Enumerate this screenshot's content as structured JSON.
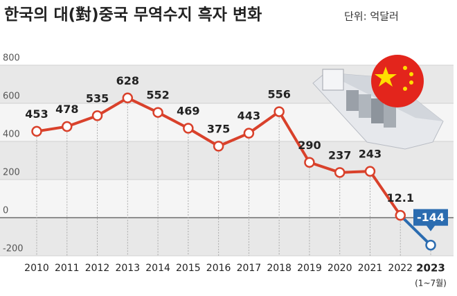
{
  "chart_data": {
    "type": "line",
    "title": "한국의 대(對)중국 무역수지 흑자 변화",
    "subtitle": "단위: 억달러",
    "categories": [
      "2010",
      "2011",
      "2012",
      "2013",
      "2014",
      "2015",
      "2016",
      "2017",
      "2018",
      "2019",
      "2020",
      "2021",
      "2022",
      "2023"
    ],
    "category_note": "(1~7월)",
    "values": [
      453,
      478,
      535,
      628,
      552,
      469,
      375,
      443,
      556,
      290,
      237,
      243,
      12.1,
      -144
    ],
    "color": "#d9412b",
    "negative_color": "#2b6cb0",
    "ylim": [
      -200,
      800
    ],
    "yticks": [
      -200,
      0,
      200,
      400,
      600,
      800
    ],
    "grid": true
  }
}
